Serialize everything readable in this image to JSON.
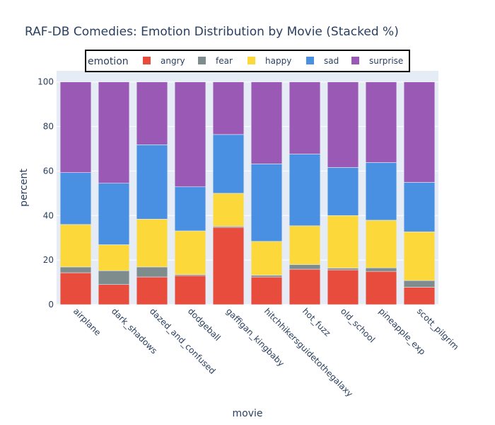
{
  "chart_data": {
    "type": "bar",
    "barmode": "stack",
    "title": "RAF-DB Comedies: Emotion Distribution by Movie (Stacked %)",
    "xlabel": "movie",
    "ylabel": "percent",
    "ylim": [
      0,
      105
    ],
    "yticks": [
      0,
      20,
      40,
      60,
      80,
      100
    ],
    "grid": true,
    "legend": {
      "title": "emotion",
      "placement": "top-center",
      "orientation": "horizontal"
    },
    "categories": [
      "airplane",
      "dark_shadows",
      "dazed_and_confused",
      "dodgeball",
      "gaffigan_kingbaby",
      "hitchhikersguidetothegalaxy",
      "hot_fuzz",
      "old_school",
      "pineapple_exp",
      "scott_pilgrim"
    ],
    "series": [
      {
        "name": "angry",
        "color": "#e74c3c",
        "values": [
          14.3,
          9.0,
          12.4,
          13.0,
          34.7,
          12.4,
          15.9,
          15.6,
          14.9,
          7.8
        ]
      },
      {
        "name": "fear",
        "color": "#7f8c8d",
        "values": [
          2.6,
          6.2,
          4.5,
          0.5,
          0.5,
          0.8,
          2.1,
          0.8,
          1.6,
          3.0
        ]
      },
      {
        "name": "happy",
        "color": "#fdd83a",
        "values": [
          19.1,
          11.7,
          21.5,
          19.6,
          14.8,
          15.2,
          17.4,
          23.6,
          21.4,
          21.9
        ]
      },
      {
        "name": "sad",
        "color": "#4a90e2",
        "values": [
          23.3,
          27.6,
          33.4,
          19.8,
          26.4,
          34.8,
          32.2,
          21.6,
          25.9,
          22.2
        ]
      },
      {
        "name": "surprise",
        "color": "#9b59b6",
        "values": [
          40.7,
          45.5,
          28.2,
          47.1,
          23.6,
          36.8,
          32.4,
          38.4,
          36.2,
          45.1
        ]
      }
    ]
  }
}
